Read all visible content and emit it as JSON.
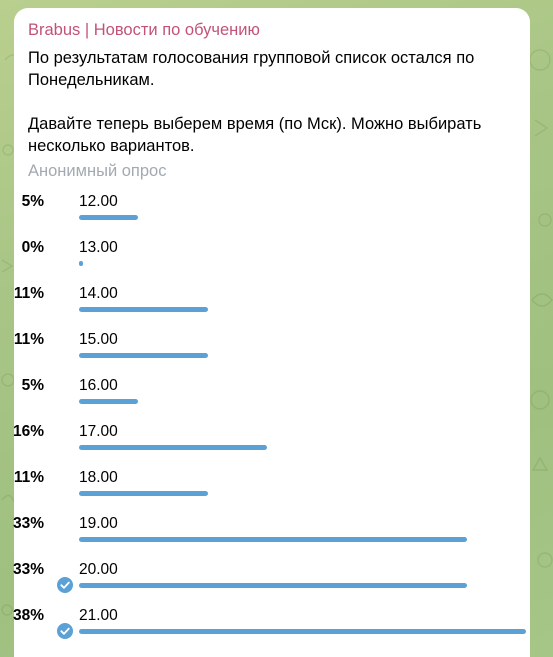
{
  "header": {
    "sender": "Brabus | Новости по обучению"
  },
  "message": {
    "text": "По результатам голосования групповой список остался по Понедельникам.\n\nДавайте теперь выберем время (по Мск). Можно выбирать несколько вариантов."
  },
  "poll": {
    "type_label": "Анонимный опрос",
    "accent_color": "#5ca1d6",
    "options": [
      {
        "percent_label": "5%",
        "label": "12.00",
        "share": 0.05,
        "voted": false
      },
      {
        "percent_label": "0%",
        "label": "13.00",
        "share": 0.0,
        "voted": false
      },
      {
        "percent_label": "11%",
        "label": "14.00",
        "share": 0.11,
        "voted": false
      },
      {
        "percent_label": "11%",
        "label": "15.00",
        "share": 0.11,
        "voted": false
      },
      {
        "percent_label": "5%",
        "label": "16.00",
        "share": 0.05,
        "voted": false
      },
      {
        "percent_label": "16%",
        "label": "17.00",
        "share": 0.16,
        "voted": false
      },
      {
        "percent_label": "11%",
        "label": "18.00",
        "share": 0.11,
        "voted": false
      },
      {
        "percent_label": "33%",
        "label": "19.00",
        "share": 0.33,
        "voted": false
      },
      {
        "percent_label": "33%",
        "label": "20.00",
        "share": 0.33,
        "voted": true
      },
      {
        "percent_label": "38%",
        "label": "21.00",
        "share": 0.38,
        "voted": true
      }
    ]
  }
}
